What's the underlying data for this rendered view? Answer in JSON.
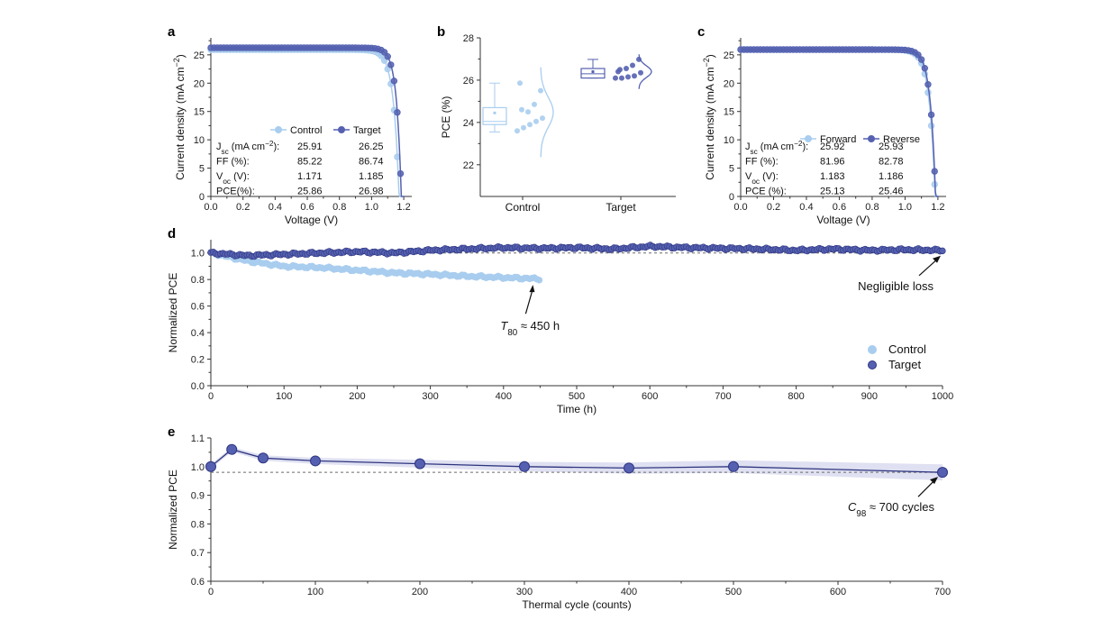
{
  "colors": {
    "control": "#a9cdee",
    "target": "#5561b0",
    "target_dark": "#2e3580",
    "dash": "#6b6b6b",
    "axis": "#333333"
  },
  "chart_data": [
    {
      "id": "a",
      "panel_label": "a",
      "type": "line",
      "xlabel": "Voltage (V)",
      "ylabel": "Current density (mA cm−2)",
      "xlim": [
        0,
        1.25
      ],
      "ylim": [
        0,
        28
      ],
      "xticks": [
        "0.0",
        "0.2",
        "0.4",
        "0.6",
        "0.8",
        "1.0",
        "1.2"
      ],
      "yticks": [
        "0",
        "5",
        "10",
        "15",
        "20",
        "25"
      ],
      "series": [
        {
          "name": "Control",
          "jsc": 25.91,
          "voc": 1.171,
          "knee": 0.035
        },
        {
          "name": "Target",
          "jsc": 26.25,
          "voc": 1.185,
          "knee": 0.03
        }
      ],
      "table": {
        "headers": [
          "",
          "Control",
          "Target"
        ],
        "rows": [
          [
            "J_sc (mA cm−2):",
            "25.91",
            "26.25"
          ],
          [
            "FF (%):",
            "85.22",
            "86.74"
          ],
          [
            "V_oc (V):",
            "1.171",
            "1.185"
          ],
          [
            "PCE(%):",
            "25.86",
            "26.98"
          ]
        ]
      }
    },
    {
      "id": "b",
      "panel_label": "b",
      "type": "box",
      "xlabel": "",
      "ylabel": "PCE (%)",
      "ylim": [
        20.5,
        28
      ],
      "yticks": [
        "22",
        "24",
        "26",
        "28"
      ],
      "categories": [
        "Control",
        "Target"
      ],
      "box": [
        {
          "min": 23.55,
          "q1": 23.9,
          "median": 24.05,
          "q3": 24.7,
          "max": 25.86,
          "mean": 24.45
        },
        {
          "min": 26.1,
          "q1": 26.1,
          "median": 26.3,
          "q3": 26.55,
          "max": 26.98,
          "mean": 26.4
        }
      ],
      "points": [
        [
          23.6,
          23.75,
          23.9,
          24.05,
          24.2,
          24.6,
          24.5,
          24.85,
          25.5,
          25.86
        ],
        [
          26.1,
          26.1,
          26.15,
          26.2,
          26.35,
          26.5,
          26.55,
          26.7,
          26.98,
          26.4
        ]
      ]
    },
    {
      "id": "c",
      "panel_label": "c",
      "type": "line",
      "xlabel": "Voltage (V)",
      "ylabel": "Current density (mA cm−2)",
      "xlim": [
        0,
        1.25
      ],
      "ylim": [
        0,
        28
      ],
      "xticks": [
        "0.0",
        "0.2",
        "0.4",
        "0.6",
        "0.8",
        "1.0",
        "1.2"
      ],
      "yticks": [
        "0",
        "5",
        "10",
        "15",
        "20",
        "25"
      ],
      "series": [
        {
          "name": "Forward",
          "jsc": 25.92,
          "voc": 1.183,
          "knee": 0.035
        },
        {
          "name": "Reverse",
          "jsc": 25.93,
          "voc": 1.186,
          "knee": 0.032
        }
      ],
      "table": {
        "headers": [
          "",
          "Forward",
          "Reverse"
        ],
        "rows": [
          [
            "J_sc (mA cm−2):",
            "25.92",
            "25.93"
          ],
          [
            "FF (%):",
            "81.96",
            "82.78"
          ],
          [
            "V_oc (V):",
            "1.183",
            "1.186"
          ],
          [
            "PCE (%):",
            "25.13",
            "25.46"
          ]
        ]
      }
    },
    {
      "id": "d",
      "panel_label": "d",
      "type": "scatter",
      "xlabel": "Time (h)",
      "ylabel": "Normalized PCE",
      "xlim": [
        0,
        1000
      ],
      "ylim": [
        0,
        1.1
      ],
      "xticks": [
        "0",
        "100",
        "200",
        "300",
        "400",
        "500",
        "600",
        "700",
        "800",
        "900",
        "1000"
      ],
      "yticks": [
        "0.0",
        "0.2",
        "0.4",
        "0.6",
        "0.8",
        "1.0"
      ],
      "reference_line": 1.0,
      "series": [
        {
          "name": "Control",
          "x": [
            0,
            25,
            50,
            75,
            100,
            150,
            200,
            250,
            300,
            350,
            400,
            450
          ],
          "values": [
            1.0,
            0.97,
            0.94,
            0.92,
            0.9,
            0.89,
            0.87,
            0.85,
            0.84,
            0.825,
            0.815,
            0.805
          ]
        },
        {
          "name": "Target",
          "x": [
            0,
            50,
            100,
            150,
            200,
            250,
            300,
            350,
            400,
            450,
            500,
            550,
            600,
            650,
            700,
            750,
            800,
            850,
            900,
            950,
            1000
          ],
          "values": [
            1.0,
            0.98,
            0.99,
            1.0,
            1.01,
            1.0,
            1.02,
            1.03,
            1.04,
            1.035,
            1.04,
            1.03,
            1.05,
            1.04,
            1.035,
            1.03,
            1.02,
            1.03,
            1.02,
            1.025,
            1.02
          ]
        }
      ],
      "annotations": [
        {
          "text_before": "T",
          "sub": "80",
          "text_after": " ≈ 450 h",
          "x": 450,
          "y": 0.8
        },
        {
          "text": "Negligible loss",
          "x": 1000,
          "y": 1.02
        }
      ],
      "legend": [
        "Control",
        "Target"
      ]
    },
    {
      "id": "e",
      "panel_label": "e",
      "type": "line",
      "xlabel": "Thermal cycle (counts)",
      "ylabel": "Normalized PCE",
      "xlim": [
        0,
        700
      ],
      "ylim": [
        0.6,
        1.1
      ],
      "xticks": [
        "0",
        "100",
        "200",
        "300",
        "400",
        "500",
        "600",
        "700"
      ],
      "yticks": [
        "0.6",
        "0.7",
        "0.8",
        "0.9",
        "1.0",
        "1.1"
      ],
      "reference_line": 0.98,
      "series": [
        {
          "name": "Target",
          "x": [
            0,
            20,
            50,
            100,
            200,
            300,
            400,
            500,
            700
          ],
          "values": [
            1.0,
            1.06,
            1.03,
            1.02,
            1.01,
            1.0,
            0.995,
            1.0,
            0.98
          ]
        }
      ],
      "annotations": [
        {
          "text_before": "C",
          "sub": "98",
          "text_after": " ≈ 700 cycles",
          "x": 700,
          "y": 0.98
        }
      ]
    }
  ]
}
